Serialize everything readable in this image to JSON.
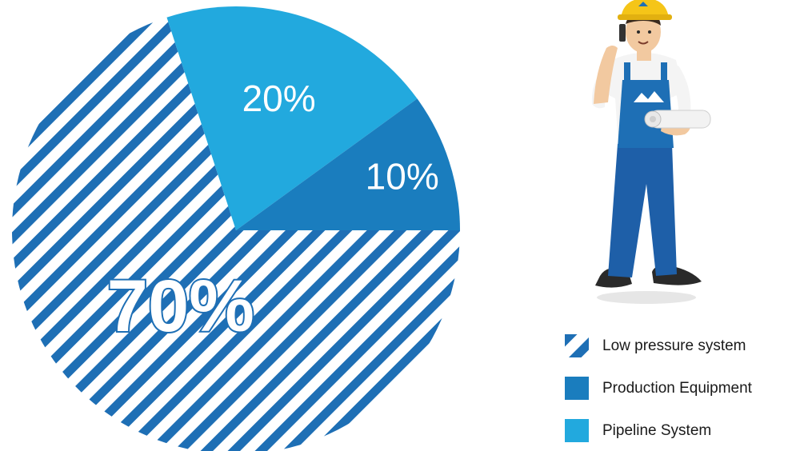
{
  "chart_data": {
    "type": "pie",
    "slices": [
      {
        "label": "Low pressure system",
        "value": 70,
        "display": "70%",
        "color": "#1E6FB5",
        "pattern": "diagonal-stripes"
      },
      {
        "label": "Production Equipment",
        "value": 10,
        "display": "10%",
        "color": "#1A7DBE",
        "pattern": "solid"
      },
      {
        "label": "Pipeline System",
        "value": 20,
        "display": "20%",
        "color": "#22A9DE",
        "pattern": "solid"
      }
    ],
    "legend_position": "bottom-right"
  },
  "legend": [
    {
      "label": "Low pressure system",
      "swatch": "stripes",
      "color": "#1E6FB5"
    },
    {
      "label": "Production Equipment",
      "swatch": "solid",
      "color": "#1A7DBE"
    },
    {
      "label": "Pipeline System",
      "swatch": "solid",
      "color": "#22A9DE"
    }
  ],
  "illustration": {
    "subject": "worker-with-phone-and-blueprints"
  }
}
